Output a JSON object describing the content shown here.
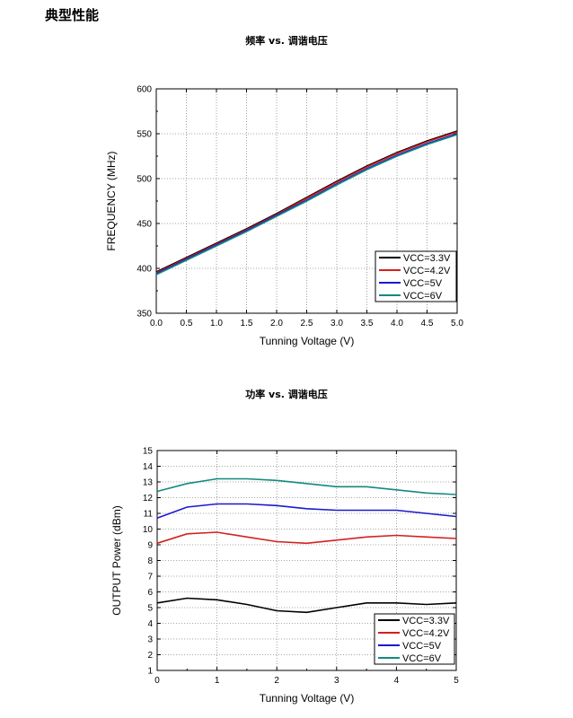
{
  "page": {
    "heading": "典型性能"
  },
  "colors": {
    "VCC=3.3V": "#000000",
    "VCC=4.2V": "#d42020",
    "VCC=5V": "#1a1acc",
    "VCC=6V": "#128a80"
  },
  "chart_data": [
    {
      "type": "line",
      "title": "频率  vs.  调谐电压",
      "xlabel": "Tunning Voltage (V)",
      "ylabel": "FREQUENCY (MHz)",
      "xlim": [
        0,
        5
      ],
      "ylim": [
        350,
        600
      ],
      "xticks": [
        "0.0",
        "0.5",
        "1.0",
        "1.5",
        "2.0",
        "2.5",
        "3.0",
        "3.5",
        "4.0",
        "4.5",
        "5.0"
      ],
      "yticks": [
        "350",
        "400",
        "450",
        "500",
        "550",
        "600"
      ],
      "grid": true,
      "legend_position": "bottom-right",
      "x": [
        0,
        0.5,
        1.0,
        1.5,
        2.0,
        2.5,
        3.0,
        3.5,
        4.0,
        4.5,
        5.0
      ],
      "series": [
        {
          "name": "VCC=3.3V",
          "values": [
            396,
            412,
            428,
            444,
            461,
            479,
            497,
            514,
            529,
            542,
            553
          ]
        },
        {
          "name": "VCC=4.2V",
          "values": [
            395,
            411,
            427,
            443,
            460,
            478,
            496,
            513,
            528,
            541,
            552
          ]
        },
        {
          "name": "VCC=5V",
          "values": [
            394,
            410,
            426,
            442,
            459,
            476,
            494,
            511,
            526,
            539,
            550
          ]
        },
        {
          "name": "VCC=6V",
          "values": [
            393,
            409,
            425,
            441,
            458,
            475,
            493,
            510,
            525,
            538,
            549
          ]
        }
      ]
    },
    {
      "type": "line",
      "title": "功率  vs.  调谐电压",
      "xlabel": "Tunning Voltage (V)",
      "ylabel": "OUTPUT Power (dBm)",
      "xlim": [
        0,
        5
      ],
      "ylim": [
        1,
        15
      ],
      "xticks": [
        "0",
        "1",
        "2",
        "3",
        "4",
        "5"
      ],
      "yticks": [
        "1",
        "2",
        "3",
        "4",
        "5",
        "6",
        "7",
        "8",
        "9",
        "10",
        "11",
        "12",
        "13",
        "14",
        "15"
      ],
      "grid": true,
      "legend_position": "bottom-right",
      "x": [
        0,
        0.5,
        1.0,
        1.5,
        2.0,
        2.5,
        3.0,
        3.5,
        4.0,
        4.5,
        5.0
      ],
      "series": [
        {
          "name": "VCC=3.3V",
          "values": [
            5.3,
            5.6,
            5.5,
            5.2,
            4.8,
            4.7,
            5.0,
            5.3,
            5.3,
            5.2,
            5.3
          ]
        },
        {
          "name": "VCC=4.2V",
          "values": [
            9.1,
            9.7,
            9.8,
            9.5,
            9.2,
            9.1,
            9.3,
            9.5,
            9.6,
            9.5,
            9.4
          ]
        },
        {
          "name": "VCC=5V",
          "values": [
            10.7,
            11.4,
            11.6,
            11.6,
            11.5,
            11.3,
            11.2,
            11.2,
            11.2,
            11.0,
            10.8
          ]
        },
        {
          "name": "VCC=6V",
          "values": [
            12.4,
            12.9,
            13.2,
            13.2,
            13.1,
            12.9,
            12.7,
            12.7,
            12.5,
            12.3,
            12.2
          ]
        }
      ]
    }
  ]
}
